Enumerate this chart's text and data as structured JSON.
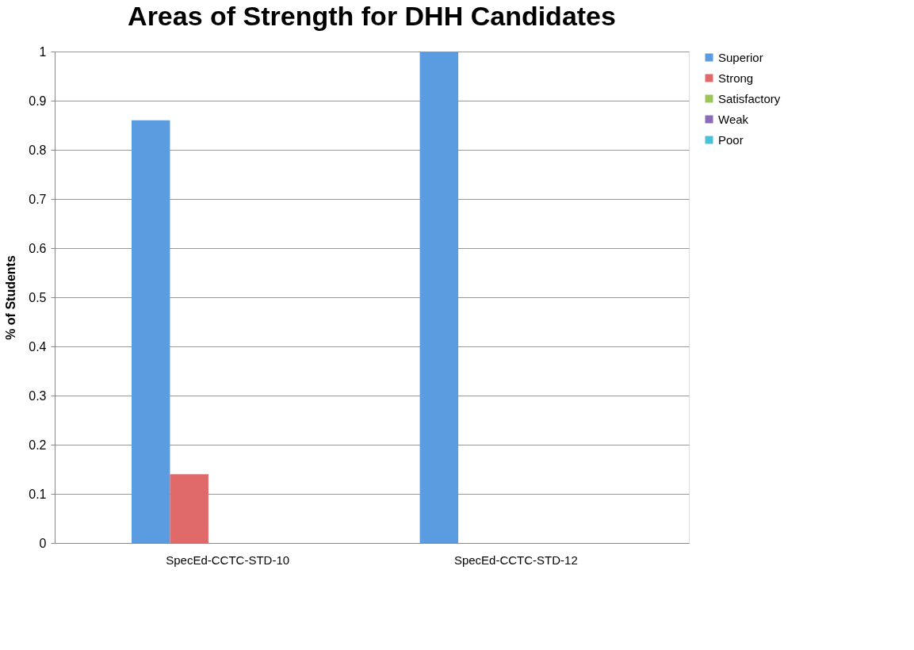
{
  "chart_data": {
    "type": "bar",
    "title": "Areas of Strength for DHH Candidates",
    "ylabel": "% of Students",
    "categories": [
      "SpecEd-CCTC-STD-10",
      "SpecEd-CCTC-STD-12"
    ],
    "series": [
      {
        "name": "Superior",
        "color": "#5b9be0",
        "values": [
          0.86,
          1
        ]
      },
      {
        "name": "Strong",
        "color": "#e06a6a",
        "values": [
          0.14,
          0
        ]
      },
      {
        "name": "Satisfactory",
        "color": "#9bc45a",
        "values": [
          0,
          0
        ]
      },
      {
        "name": "Weak",
        "color": "#8a6bb8",
        "values": [
          0,
          0
        ]
      },
      {
        "name": "Poor",
        "color": "#4bc0d6",
        "values": [
          0,
          0
        ]
      }
    ],
    "ylim": [
      0,
      1
    ],
    "yticks": [
      0,
      0.1,
      0.2,
      0.3,
      0.4,
      0.5,
      0.6,
      0.7,
      0.8,
      0.9,
      1
    ],
    "grid": "y",
    "legend": "right"
  }
}
